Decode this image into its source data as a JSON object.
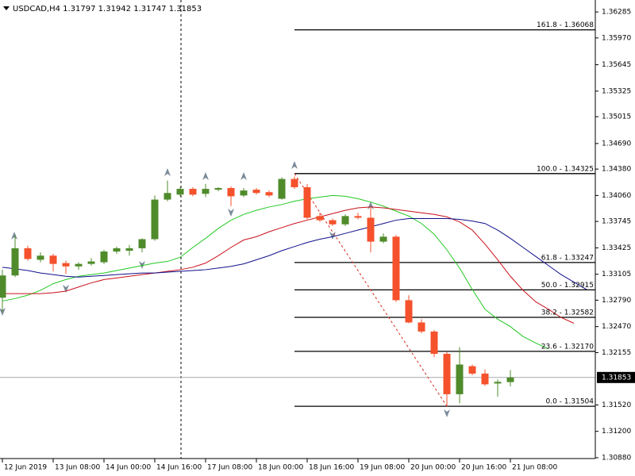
{
  "chart_data": {
    "type": "candlestick",
    "title": "USDCAD,H4 1.31797 1.31942 1.31747 1.31853",
    "categories": [
      "12 Jun 2019",
      null,
      null,
      null,
      "13 Jun 08:00",
      null,
      null,
      null,
      "14 Jun 00:00",
      null,
      null,
      null,
      "14 Jun 16:00",
      null,
      null,
      null,
      "17 Jun 08:00",
      null,
      null,
      null,
      "18 Jun 00:00",
      null,
      null,
      null,
      "18 Jun 16:00",
      null,
      null,
      null,
      "19 Jun 08:00",
      null,
      null,
      null,
      "20 Jun 00:00",
      null,
      null,
      null,
      "20 Jun 16:00",
      null,
      null,
      null,
      "21 Jun 08:00",
      null,
      null,
      null,
      null,
      null,
      null
    ],
    "open": [
      1.3282,
      1.3309,
      1.3342,
      1.3328,
      1.3333,
      1.3324,
      1.332,
      1.3323,
      1.3325,
      1.3338,
      1.3339,
      1.3342,
      1.3353,
      1.3401,
      1.3407,
      1.3414,
      1.3408,
      1.3413,
      1.3415,
      1.3406,
      1.3413,
      1.341,
      1.3402,
      1.3426,
      1.3416,
      1.3381,
      1.3376,
      1.3371,
      1.3381,
      1.3379,
      1.335,
      1.3356,
      1.3279,
      1.3252,
      1.3241,
      1.3214,
      1.3165,
      1.3199,
      1.319,
      1.3178,
      1.31797,
      null,
      null,
      null,
      null,
      null,
      null
    ],
    "high": [
      1.3316,
      1.3358,
      1.3345,
      1.3337,
      1.3335,
      1.3327,
      1.3325,
      1.333,
      1.334,
      1.3344,
      1.3346,
      1.3354,
      1.3406,
      1.3424,
      1.3416,
      1.3416,
      1.342,
      1.3416,
      1.3417,
      1.3415,
      1.3415,
      1.3412,
      1.3428,
      1.3429,
      1.342,
      1.3385,
      1.3378,
      1.3383,
      1.3385,
      1.3391,
      1.336,
      1.3358,
      1.3285,
      1.3256,
      1.3243,
      1.3216,
      1.3222,
      1.3201,
      1.3195,
      1.3183,
      1.31942,
      null,
      null,
      null,
      null,
      null,
      null
    ],
    "low": [
      1.3265,
      1.3307,
      1.3327,
      1.3325,
      1.3314,
      1.3311,
      1.3316,
      1.3321,
      1.3323,
      1.3335,
      1.3333,
      1.3337,
      1.3351,
      1.3399,
      1.3405,
      1.3405,
      1.3404,
      1.3411,
      1.3393,
      1.3404,
      1.3407,
      1.3404,
      1.3401,
      1.3414,
      1.3377,
      1.3374,
      1.3369,
      1.3369,
      1.3377,
      1.3337,
      1.3348,
      1.3277,
      1.3251,
      1.3239,
      1.321,
      1.315,
      1.3154,
      1.3188,
      1.3175,
      1.3162,
      1.31747,
      null,
      null,
      null,
      null,
      null,
      null
    ],
    "close": [
      1.3309,
      1.3342,
      1.3329,
      1.3333,
      1.3323,
      1.332,
      1.3323,
      1.3326,
      1.3338,
      1.3342,
      1.3342,
      1.3353,
      1.3401,
      1.3409,
      1.3414,
      1.3407,
      1.3414,
      1.3415,
      1.3405,
      1.3412,
      1.3409,
      1.3406,
      1.3426,
      1.3416,
      1.3379,
      1.3376,
      1.3371,
      1.3381,
      1.3379,
      1.335,
      1.3356,
      1.3279,
      1.3252,
      1.3241,
      1.3214,
      1.3165,
      1.3201,
      1.319,
      1.3177,
      1.318,
      1.31853,
      null,
      null,
      null,
      null,
      null,
      null
    ],
    "up_color": "#4f8b2b",
    "down_color": "#f4512c",
    "series": [
      {
        "color": "#22c822",
        "values": [
          1.3278,
          1.3281,
          1.3285,
          1.3291,
          1.3299,
          1.3304,
          1.3308,
          1.331,
          1.3312,
          1.3315,
          1.3318,
          1.3321,
          1.3324,
          1.3326,
          1.3331,
          1.3343,
          1.3354,
          1.3366,
          1.3376,
          1.3383,
          1.3388,
          1.3392,
          1.3395,
          1.3399,
          1.3402,
          1.3404,
          1.3406,
          1.3405,
          1.3402,
          1.3398,
          1.3393,
          1.3387,
          1.3381,
          1.3372,
          1.3359,
          1.334,
          1.3318,
          1.3292,
          1.3268,
          1.3256,
          1.3247,
          1.3235,
          1.3227,
          1.322,
          null,
          null,
          null
        ]
      },
      {
        "color": "#c8101a",
        "values": [
          1.3287,
          1.3287,
          1.3287,
          1.3287,
          1.3288,
          1.329,
          1.3295,
          1.33,
          1.3304,
          1.3306,
          1.3308,
          1.331,
          1.3312,
          1.3314,
          1.3316,
          1.3319,
          1.3324,
          1.3333,
          1.3343,
          1.3352,
          1.3356,
          1.3362,
          1.3367,
          1.3372,
          1.3376,
          1.338,
          1.3384,
          1.3388,
          1.3391,
          1.3392,
          1.3391,
          1.3389,
          1.3387,
          1.3385,
          1.3383,
          1.338,
          1.3374,
          1.3364,
          1.3347,
          1.3328,
          1.3308,
          1.3291,
          1.3277,
          1.3268,
          1.3258,
          1.3251,
          null
        ]
      },
      {
        "color": "#10108c",
        "values": [
          1.3319,
          1.3317,
          1.3315,
          1.3312,
          1.331,
          1.3308,
          1.3307,
          1.3308,
          1.3309,
          1.331,
          1.3311,
          1.3312,
          1.3312,
          1.3313,
          1.3314,
          1.3315,
          1.3316,
          1.3318,
          1.332,
          1.3323,
          1.3328,
          1.3333,
          1.3339,
          1.3344,
          1.3349,
          1.3353,
          1.3356,
          1.336,
          1.3364,
          1.3368,
          1.3372,
          1.3376,
          1.3378,
          1.3378,
          1.3378,
          1.3378,
          1.3377,
          1.3375,
          1.3372,
          1.3364,
          1.3354,
          1.3343,
          1.3332,
          1.3321,
          1.331,
          1.3301,
          1.3292
        ]
      }
    ],
    "fibo_levels": [
      {
        "value": 1.36068,
        "label": "161.8 - 1.36068"
      },
      {
        "value": 1.34325,
        "label": "100.0 - 1.34325"
      },
      {
        "value": 1.33247,
        "label": "61.8 - 1.33247"
      },
      {
        "value": 1.32915,
        "label": "50.0 - 1.32915"
      },
      {
        "value": 1.32582,
        "label": "38.2 - 1.32582"
      },
      {
        "value": 1.3217,
        "label": "23.6 - 1.32170"
      },
      {
        "value": 1.31504,
        "label": "0.0 - 1.31504"
      }
    ],
    "fibo_color": "#000000",
    "fibo_trend_color": "#d83020",
    "current_price": 1.31853,
    "ylim": [
      1.3087,
      1.3643
    ],
    "yticks": [
      1.36285,
      {
        "value": 1.3597,
        "label": "1.35970"
      },
      1.35645,
      1.35325,
      1.35015,
      {
        "value": 1.3469,
        "label": "1.34690"
      },
      {
        "value": 1.3438,
        "label": "1.34380"
      },
      {
        "value": 1.3406,
        "label": "1.34060"
      },
      1.33745,
      1.33425,
      1.33105,
      {
        "value": 1.3279,
        "label": "1.32790"
      },
      {
        "value": 1.3247,
        "label": "1.32470"
      },
      1.32155,
      {
        "value": 1.3152,
        "label": "1.31520"
      },
      {
        "value": 1.312,
        "label": "1.31200"
      },
      {
        "value": 1.3088,
        "label": "1.30880"
      }
    ]
  }
}
